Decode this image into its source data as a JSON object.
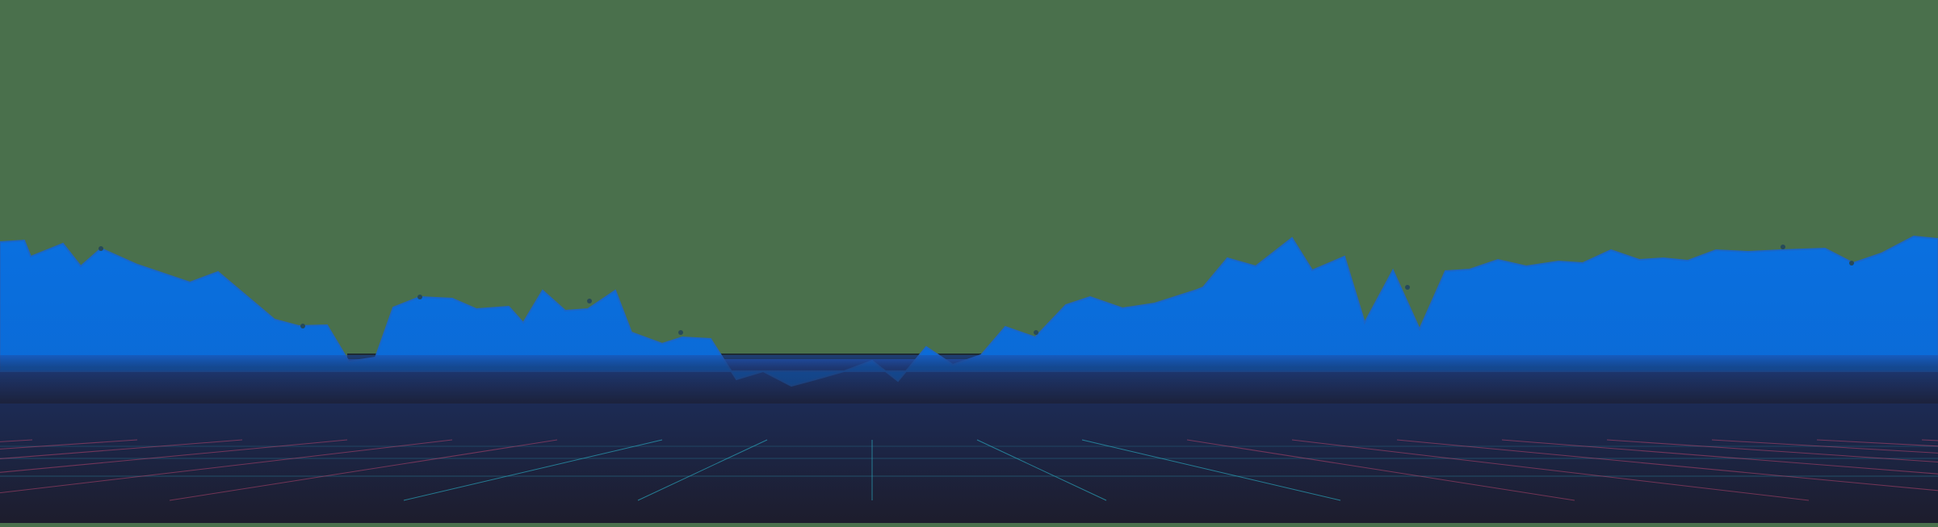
{
  "scene": {
    "description_visible_text": "",
    "colors": {
      "sky": "#4a704c",
      "mountain": "#0a70e0",
      "mountain_dark_edge": "#0b5fc0",
      "floor_top": "#1c2b55",
      "floor_bottom": "#1d1c2b",
      "grid_cyan": "#2aa3b8",
      "grid_pink": "#b8466e",
      "ridge_dot": "#1a3a3a"
    },
    "elements": {
      "sky_label": "sky-background",
      "mountain_label": "mountain-silhouette",
      "floor_label": "grid-floor"
    }
  }
}
